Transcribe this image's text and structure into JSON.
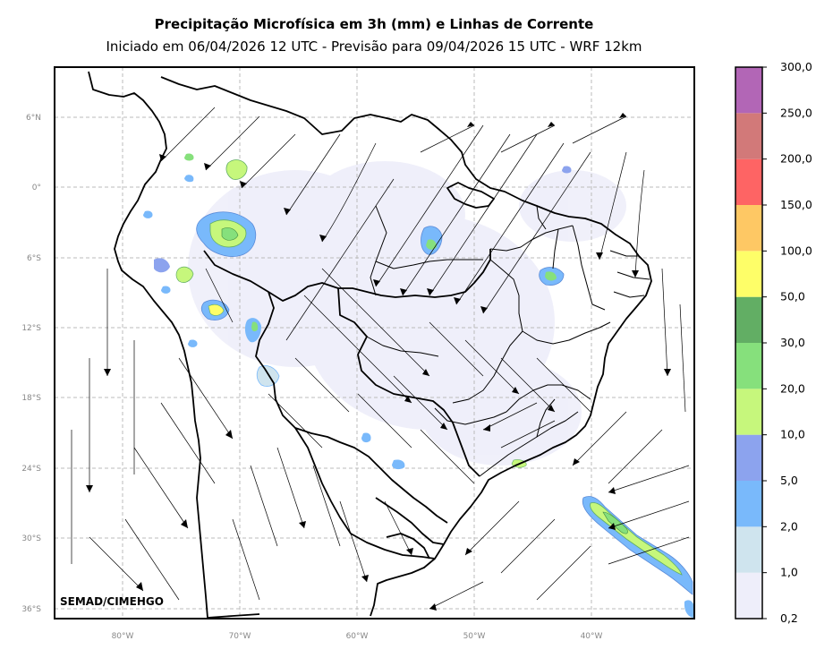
{
  "title": "Precipitação Microfísica em 3h (mm) e Linhas de Corrente",
  "subtitle": "Iniciado em 06/04/2026 12 UTC - Previsão para 09/04/2026 15 UTC - WRF 12km",
  "watermark": "SEMAD/CIMEHGO",
  "lat_labels": [
    "6°N",
    "0°",
    "6°S",
    "12°S",
    "18°S",
    "24°S",
    "30°S",
    "36°S"
  ],
  "lon_labels": [
    "80°W",
    "70°W",
    "60°W",
    "50°W",
    "40°W"
  ],
  "colorbar": {
    "labels": [
      "0,2",
      "1,0",
      "2,0",
      "5,0",
      "10,0",
      "20,0",
      "30,0",
      "50,0",
      "100,0",
      "150,0",
      "200,0",
      "250,0",
      "300,0"
    ],
    "colors": [
      "#eeeefa",
      "#cfe4ee",
      "#79b9fb",
      "#8ca3ee",
      "#c6f77c",
      "#86e07c",
      "#62ae64",
      "#fefe68",
      "#fec864",
      "#fe6464",
      "#d27979",
      "#b266b6"
    ]
  }
}
